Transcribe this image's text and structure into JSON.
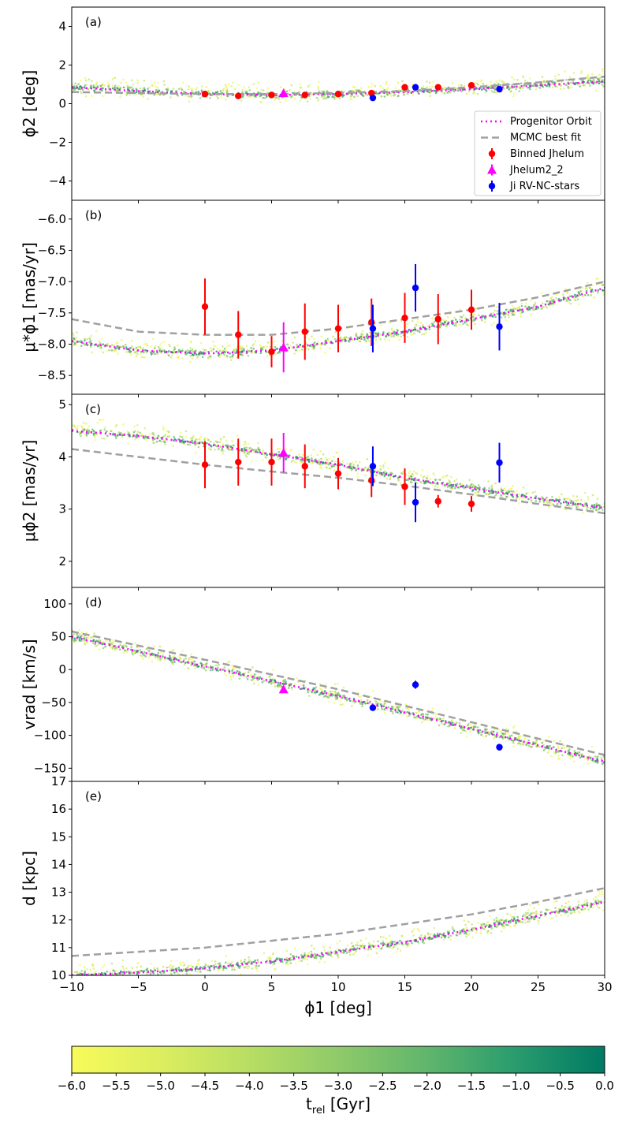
{
  "chart_data": [
    {
      "panel": "(a)",
      "type": "scatter",
      "xlim": [
        -10,
        30
      ],
      "ylim": [
        -5,
        5
      ],
      "ylabel": "ϕ2 [deg]",
      "yticks": [
        4,
        2,
        0,
        -2,
        -4
      ],
      "ytick_labels": [
        "4",
        "2",
        "0",
        "−2",
        "−4"
      ],
      "series": [
        {
          "name": "Progenitor Orbit",
          "style": "dotted",
          "color": "#ff00ff",
          "x": [
            -10,
            -5,
            0,
            5,
            10,
            15,
            20,
            25,
            30
          ],
          "y": [
            0.85,
            0.65,
            0.5,
            0.45,
            0.5,
            0.6,
            0.75,
            0.95,
            1.15
          ]
        },
        {
          "name": "MCMC best fit",
          "style": "dashed",
          "color": "#a0a0a0",
          "x": [
            -10,
            -5,
            0,
            5,
            10,
            15,
            20,
            25,
            30
          ],
          "y": [
            0.6,
            0.55,
            0.5,
            0.5,
            0.55,
            0.65,
            0.85,
            1.1,
            1.4
          ]
        },
        {
          "name": "Binned Jhelum",
          "marker": "circle",
          "color": "#ff0000",
          "x": [
            0,
            2.5,
            5,
            7.5,
            10,
            12.5,
            15,
            17.5,
            20
          ],
          "y": [
            0.5,
            0.4,
            0.45,
            0.45,
            0.5,
            0.55,
            0.85,
            0.85,
            0.95
          ],
          "err": [
            0.08,
            0.08,
            0.08,
            0.08,
            0.08,
            0.08,
            0.08,
            0.08,
            0.08
          ]
        },
        {
          "name": "Jhelum2_2",
          "marker": "triangle",
          "color": "#ff00ff",
          "x": [
            5.9
          ],
          "y": [
            0.55
          ],
          "err": [
            0.05
          ]
        },
        {
          "name": "Ji RV-NC-stars",
          "marker": "circle",
          "color": "#0000ff",
          "x": [
            12.6,
            15.8,
            22.1
          ],
          "y": [
            0.3,
            0.85,
            0.75
          ],
          "err": [
            0.06,
            0.06,
            0.06
          ]
        }
      ],
      "legend": {
        "placement": "lower-right",
        "entries": [
          "Progenitor Orbit",
          "MCMC best fit",
          "Binned Jhelum",
          "Jhelum2_2",
          "Ji RV-NC-stars"
        ]
      }
    },
    {
      "panel": "(b)",
      "type": "scatter",
      "xlim": [
        -10,
        30
      ],
      "ylim": [
        -8.8,
        -5.7
      ],
      "ylabel": "μ*ϕ1 [mas/yr]",
      "yticks": [
        -6.0,
        -6.5,
        -7.0,
        -7.5,
        -8.0,
        -8.5
      ],
      "ytick_labels": [
        "−6.0",
        "−6.5",
        "−7.0",
        "−7.5",
        "−8.0",
        "−8.5"
      ],
      "series": [
        {
          "name": "Progenitor Orbit",
          "style": "dotted",
          "color": "#ff00ff",
          "x": [
            -10,
            -5,
            0,
            5,
            10,
            15,
            20,
            25,
            30
          ],
          "y": [
            -7.95,
            -8.1,
            -8.15,
            -8.1,
            -7.95,
            -7.8,
            -7.6,
            -7.4,
            -7.1
          ]
        },
        {
          "name": "MCMC best fit",
          "style": "dashed",
          "color": "#a0a0a0",
          "x": [
            -10,
            -5,
            0,
            5,
            10,
            15,
            20,
            25,
            30
          ],
          "y": [
            -7.6,
            -7.8,
            -7.85,
            -7.85,
            -7.75,
            -7.6,
            -7.45,
            -7.25,
            -7.0
          ]
        },
        {
          "name": "Binned Jhelum",
          "marker": "circle",
          "color": "#ff0000",
          "x": [
            0,
            2.5,
            5,
            7.5,
            10,
            12.5,
            15,
            17.5,
            20
          ],
          "y": [
            -7.4,
            -7.85,
            -8.12,
            -7.8,
            -7.75,
            -7.65,
            -7.58,
            -7.6,
            -7.45
          ],
          "err": [
            0.45,
            0.38,
            0.25,
            0.45,
            0.38,
            0.38,
            0.4,
            0.4,
            0.32
          ]
        },
        {
          "name": "Jhelum2_2",
          "marker": "triangle",
          "color": "#ff00ff",
          "x": [
            5.9
          ],
          "y": [
            -8.05
          ],
          "err": [
            0.4
          ]
        },
        {
          "name": "Ji RV-NC-stars",
          "marker": "circle",
          "color": "#0000ff",
          "x": [
            12.6,
            15.8,
            22.1
          ],
          "y": [
            -7.75,
            -7.1,
            -7.72
          ],
          "err": [
            0.38,
            0.38,
            0.38
          ]
        }
      ]
    },
    {
      "panel": "(c)",
      "type": "scatter",
      "xlim": [
        -10,
        30
      ],
      "ylim": [
        1.5,
        5.2
      ],
      "ylabel": "μϕ2 [mas/yr]",
      "yticks": [
        5,
        4,
        3,
        2
      ],
      "ytick_labels": [
        "5",
        "4",
        "3",
        "2"
      ],
      "series": [
        {
          "name": "Progenitor Orbit",
          "style": "dotted",
          "color": "#ff00ff",
          "x": [
            -10,
            -5,
            0,
            5,
            10,
            15,
            20,
            25,
            30
          ],
          "y": [
            4.5,
            4.4,
            4.25,
            4.05,
            3.85,
            3.6,
            3.4,
            3.2,
            3.02
          ]
        },
        {
          "name": "MCMC best fit",
          "style": "dashed",
          "color": "#a0a0a0",
          "x": [
            -10,
            -5,
            0,
            5,
            10,
            15,
            20,
            25,
            30
          ],
          "y": [
            4.15,
            4.0,
            3.85,
            3.72,
            3.6,
            3.45,
            3.28,
            3.1,
            2.92
          ]
        },
        {
          "name": "Binned Jhelum",
          "marker": "circle",
          "color": "#ff0000",
          "x": [
            0,
            2.5,
            5,
            7.5,
            10,
            12.5,
            15,
            17.5,
            20
          ],
          "y": [
            3.85,
            3.9,
            3.9,
            3.82,
            3.68,
            3.55,
            3.43,
            3.15,
            3.1
          ],
          "err": [
            0.45,
            0.45,
            0.45,
            0.42,
            0.3,
            0.32,
            0.35,
            0.12,
            0.15
          ]
        },
        {
          "name": "Jhelum2_2",
          "marker": "triangle",
          "color": "#ff00ff",
          "x": [
            5.9
          ],
          "y": [
            4.08
          ],
          "err": [
            0.38
          ]
        },
        {
          "name": "Ji RV-NC-stars",
          "marker": "circle",
          "color": "#0000ff",
          "x": [
            12.6,
            15.8,
            22.1
          ],
          "y": [
            3.82,
            3.13,
            3.89
          ],
          "err": [
            0.38,
            0.38,
            0.38
          ]
        }
      ]
    },
    {
      "panel": "(d)",
      "type": "scatter",
      "xlim": [
        -10,
        30
      ],
      "ylim": [
        -170,
        125
      ],
      "ylabel": "vrad [km/s]",
      "yticks": [
        100,
        50,
        0,
        -50,
        -100,
        -150
      ],
      "ytick_labels": [
        "100",
        "50",
        "0",
        "−50",
        "−100",
        "−150"
      ],
      "series": [
        {
          "name": "Progenitor Orbit",
          "style": "dotted",
          "color": "#ff00ff",
          "x": [
            -10,
            0,
            10,
            20,
            30
          ],
          "y": [
            50,
            5,
            -40,
            -90,
            -140
          ]
        },
        {
          "name": "MCMC best fit",
          "style": "dashed",
          "color": "#a0a0a0",
          "x": [
            -10,
            0,
            10,
            20,
            30
          ],
          "y": [
            58,
            15,
            -30,
            -80,
            -130
          ]
        },
        {
          "name": "Jhelum2_2",
          "marker": "triangle",
          "color": "#ff00ff",
          "x": [
            5.9
          ],
          "y": [
            -30
          ],
          "err": [
            4
          ]
        },
        {
          "name": "Ji RV-NC-stars",
          "marker": "circle",
          "color": "#0000ff",
          "x": [
            12.6,
            15.8,
            22.1
          ],
          "y": [
            -58,
            -23,
            -118
          ],
          "err": [
            4,
            6,
            5
          ]
        }
      ]
    },
    {
      "panel": "(e)",
      "type": "scatter",
      "xlim": [
        -10,
        30
      ],
      "ylim": [
        10,
        17
      ],
      "ylabel": "d [kpc]",
      "yticks": [
        17,
        16,
        15,
        14,
        13,
        12,
        11,
        10
      ],
      "ytick_labels": [
        "17",
        "16",
        "15",
        "14",
        "13",
        "12",
        "11",
        "10"
      ],
      "xlabel": "ϕ1 [deg]",
      "xticks": [
        -10,
        -5,
        0,
        5,
        10,
        15,
        20,
        25,
        30
      ],
      "xtick_labels": [
        "−10",
        "−5",
        "0",
        "5",
        "10",
        "15",
        "20",
        "25",
        "30"
      ],
      "series": [
        {
          "name": "Progenitor Orbit",
          "style": "dotted",
          "color": "#ff00ff",
          "x": [
            -10,
            -5,
            0,
            5,
            10,
            15,
            20,
            25,
            30
          ],
          "y": [
            10.0,
            10.1,
            10.25,
            10.5,
            10.85,
            11.2,
            11.65,
            12.15,
            12.65
          ]
        },
        {
          "name": "MCMC best fit",
          "style": "dashed",
          "color": "#a0a0a0",
          "x": [
            -10,
            -5,
            0,
            5,
            10,
            15,
            20,
            25,
            30
          ],
          "y": [
            10.7,
            10.85,
            11.0,
            11.25,
            11.5,
            11.85,
            12.2,
            12.65,
            13.15
          ]
        }
      ]
    }
  ],
  "colorbar": {
    "label": "t_rel [Gyr]",
    "range": [
      -6.0,
      0.0
    ],
    "ticks": [
      "−6.0",
      "−5.5",
      "−5.0",
      "−4.5",
      "−4.0",
      "−3.5",
      "−3.0",
      "−2.5",
      "−2.0",
      "−1.5",
      "−1.0",
      "−0.5",
      "0.0"
    ],
    "colors": [
      "#f7fb5a",
      "#dced5f",
      "#b8de63",
      "#8fca6a",
      "#5fb56c",
      "#2a9c6e",
      "#007a63"
    ]
  },
  "panel_labels": [
    "(a)",
    "(b)",
    "(c)",
    "(d)",
    "(e)"
  ],
  "legend_labels": [
    "Progenitor Orbit",
    "MCMC best fit",
    "Binned Jhelum",
    "Jhelum2_2",
    "Ji RV-NC-stars"
  ]
}
